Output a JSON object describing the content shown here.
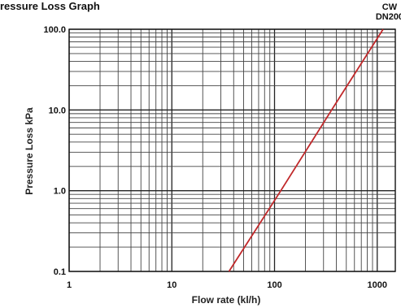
{
  "chart_data": {
    "type": "line",
    "title": "ressure Loss Graph",
    "xlabel": "Flow rate (kl/h)",
    "ylabel": "Pressure Loss kPa",
    "x_scale": "log",
    "y_scale": "log",
    "xlim": [
      1,
      1500
    ],
    "ylim": [
      0.1,
      100
    ],
    "x_ticks": [
      "1",
      "10",
      "100",
      "1000"
    ],
    "y_ticks": [
      "0.1",
      "1.0",
      "10.0",
      "100.0"
    ],
    "grid": true,
    "series": [
      {
        "name": "CW DN200",
        "label_lines": [
          "CW",
          "DN200"
        ],
        "color": "#c0282a",
        "points": [
          {
            "x": 36,
            "y": 0.1
          },
          {
            "x": 115,
            "y": 1.0
          },
          {
            "x": 360,
            "y": 10.0
          },
          {
            "x": 1140,
            "y": 100.0
          }
        ]
      }
    ]
  }
}
